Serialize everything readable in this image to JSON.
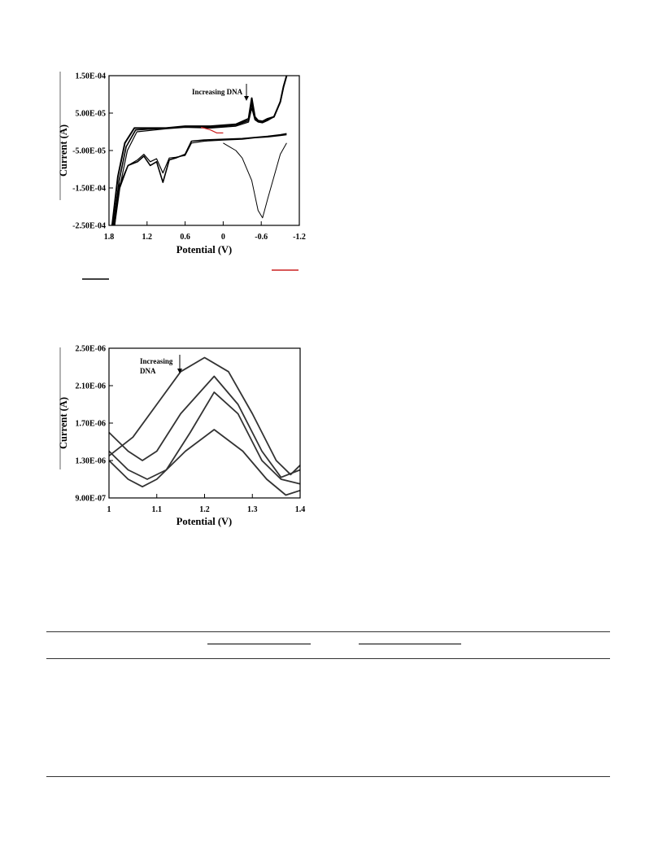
{
  "chart_data": [
    {
      "type": "line",
      "xlabel": "Potential (V)",
      "ylabel": "Current (A)",
      "xlim": [
        1.8,
        -1.2
      ],
      "ylim": [
        -0.00025,
        0.00015
      ],
      "x_ticks": [
        1.8,
        1.2,
        0.6,
        0,
        -0.6,
        -1.2
      ],
      "x_tick_labels": [
        "1.8",
        "1.2",
        "0.6",
        "0",
        "-0.6",
        "-1.2"
      ],
      "y_ticks": [
        0.00015,
        5e-05,
        -5e-05,
        -0.00015,
        -0.00025
      ],
      "y_tick_labels": [
        "1.50E-04",
        "5.00E-05",
        "-5.00E-05",
        "-1.50E-04",
        "-2.50E-04"
      ],
      "grid": false,
      "annotation": "Increasing DNA",
      "series": [
        {
          "color": "#000000",
          "x": [
            1.75,
            1.66,
            1.55,
            1.4,
            0.9,
            0.6,
            0.2,
            -0.2,
            -0.4,
            -0.45,
            -0.5,
            -0.55,
            -0.62,
            -0.7,
            -0.8,
            -0.9,
            -0.95,
            -1.0
          ],
          "y": [
            -0.00025,
            -0.00012,
            -3e-05,
            1e-05,
            1e-05,
            1.5e-05,
            1.5e-05,
            2e-05,
            3.5e-05,
            9e-05,
            4e-05,
            3e-05,
            2.8e-05,
            3.5e-05,
            4e-05,
            8e-05,
            0.00012,
            0.00015
          ]
        },
        {
          "color": "#000000",
          "x": [
            1.73,
            1.64,
            1.53,
            1.38,
            0.9,
            0.6,
            0.2,
            -0.2,
            -0.4,
            -0.45,
            -0.5,
            -0.55,
            -0.62,
            -0.7,
            -0.8,
            -0.9,
            -0.95,
            -1.0
          ],
          "y": [
            -0.00025,
            -0.00013,
            -4e-05,
            5e-06,
            1e-05,
            1.3e-05,
            1.2e-05,
            1.8e-05,
            3e-05,
            7.5e-05,
            3.5e-05,
            2.8e-05,
            2.6e-05,
            3.2e-05,
            4e-05,
            8e-05,
            0.00012,
            0.00015
          ]
        },
        {
          "color": "#000000",
          "x": [
            1.71,
            1.62,
            1.51,
            1.36,
            0.9,
            0.6,
            0.2,
            -0.2,
            -0.4,
            -0.45,
            -0.5,
            -0.55,
            -0.62,
            -0.7,
            -0.8,
            -0.9,
            -0.95,
            -1.0
          ],
          "y": [
            -0.00025,
            -0.00014,
            -5e-05,
            0.0,
            8e-06,
            1.2e-05,
            1e-05,
            1.5e-05,
            2.6e-05,
            6.3e-05,
            3.2e-05,
            2.6e-05,
            2.4e-05,
            3e-05,
            4e-05,
            8e-05,
            0.00012,
            0.00015
          ]
        },
        {
          "color": "#000000",
          "x": [
            -1.0,
            -0.9,
            -0.7,
            -0.5,
            -0.3,
            0.0,
            0.3,
            0.5,
            0.6,
            0.75,
            0.85,
            0.95,
            1.05,
            1.15,
            1.25,
            1.35,
            1.5,
            1.65,
            1.73
          ],
          "y": [
            -5e-06,
            -8e-06,
            -1.2e-05,
            -1.5e-05,
            -1.8e-05,
            -2e-05,
            -2.2e-05,
            -2.5e-05,
            -6e-05,
            -7e-05,
            -7.5e-05,
            -0.000135,
            -8e-05,
            -9e-05,
            -6.5e-05,
            -8e-05,
            -9e-05,
            -0.00015,
            -0.00025
          ]
        },
        {
          "color": "#000000",
          "x": [
            -1.0,
            -0.9,
            -0.7,
            -0.5,
            -0.3,
            0.0,
            0.3,
            0.5,
            0.6,
            0.75,
            0.85,
            0.95,
            1.05,
            1.15,
            1.25,
            1.35,
            1.5,
            1.65,
            1.71
          ],
          "y": [
            -8e-06,
            -1e-05,
            -1.4e-05,
            -1.6e-05,
            -2e-05,
            -2.2e-05,
            -2.5e-05,
            -3e-05,
            -6.3e-05,
            -6.8e-05,
            -7e-05,
            -0.00011,
            -7.2e-05,
            -8e-05,
            -6e-05,
            -7.5e-05,
            -9e-05,
            -0.00016,
            -0.00025
          ]
        },
        {
          "color": "#000000",
          "x": [
            -1.0,
            -0.9,
            -0.8,
            -0.7,
            -0.62,
            -0.55,
            -0.45,
            -0.3,
            -0.2,
            -0.1,
            0.0
          ],
          "y": [
            -3e-05,
            -6e-05,
            -0.00012,
            -0.00018,
            -0.00023,
            -0.00021,
            -0.00013,
            -7e-05,
            -5e-05,
            -4e-05,
            -3e-05
          ]
        },
        {
          "color": "#cc2020",
          "x": [
            0.0,
            0.1,
            0.2,
            0.3,
            0.35
          ],
          "y": [
            -3e-06,
            -3e-06,
            5e-06,
            1e-05,
            1.2e-05
          ]
        }
      ]
    },
    {
      "type": "line",
      "xlabel": "Potential (V)",
      "ylabel": "Current (A)",
      "xlim": [
        1.0,
        1.4
      ],
      "ylim": [
        9e-07,
        2.5e-06
      ],
      "x_ticks": [
        1.0,
        1.1,
        1.2,
        1.3,
        1.4
      ],
      "x_tick_labels": [
        "1",
        "1.1",
        "1.2",
        "1.3",
        "1.4"
      ],
      "y_ticks": [
        2.5e-06,
        2.1e-06,
        1.7e-06,
        1.3e-06,
        9e-07
      ],
      "y_tick_labels": [
        "2.50E-06",
        "2.10E-06",
        "1.70E-06",
        "1.30E-06",
        "9.00E-07"
      ],
      "grid": false,
      "annotation": "Increasing DNA",
      "series": [
        {
          "color": "#333333",
          "x": [
            1.0,
            1.05,
            1.1,
            1.15,
            1.2,
            1.25,
            1.3,
            1.35,
            1.38,
            1.4
          ],
          "y": [
            1.35e-06,
            1.55e-06,
            1.9e-06,
            2.25e-06,
            2.4e-06,
            2.25e-06,
            1.8e-06,
            1.3e-06,
            1.15e-06,
            1.25e-06
          ]
        },
        {
          "color": "#333333",
          "x": [
            1.0,
            1.04,
            1.07,
            1.1,
            1.15,
            1.22,
            1.27,
            1.32,
            1.36,
            1.4
          ],
          "y": [
            1.6e-06,
            1.4e-06,
            1.3e-06,
            1.4e-06,
            1.8e-06,
            2.2e-06,
            1.9e-06,
            1.4e-06,
            1.12e-06,
            1.2e-06
          ]
        },
        {
          "color": "#333333",
          "x": [
            1.0,
            1.04,
            1.08,
            1.12,
            1.17,
            1.22,
            1.27,
            1.32,
            1.36,
            1.4
          ],
          "y": [
            1.4e-06,
            1.2e-06,
            1.1e-06,
            1.2e-06,
            1.6e-06,
            2.03e-06,
            1.8e-06,
            1.3e-06,
            1.1e-06,
            1.05e-06
          ]
        },
        {
          "color": "#333333",
          "x": [
            1.0,
            1.04,
            1.07,
            1.1,
            1.16,
            1.22,
            1.28,
            1.33,
            1.37,
            1.4
          ],
          "y": [
            1.3e-06,
            1.1e-06,
            1.02e-06,
            1.1e-06,
            1.4e-06,
            1.63e-06,
            1.4e-06,
            1.1e-06,
            9.3e-07,
            9.8e-07
          ]
        }
      ]
    }
  ]
}
